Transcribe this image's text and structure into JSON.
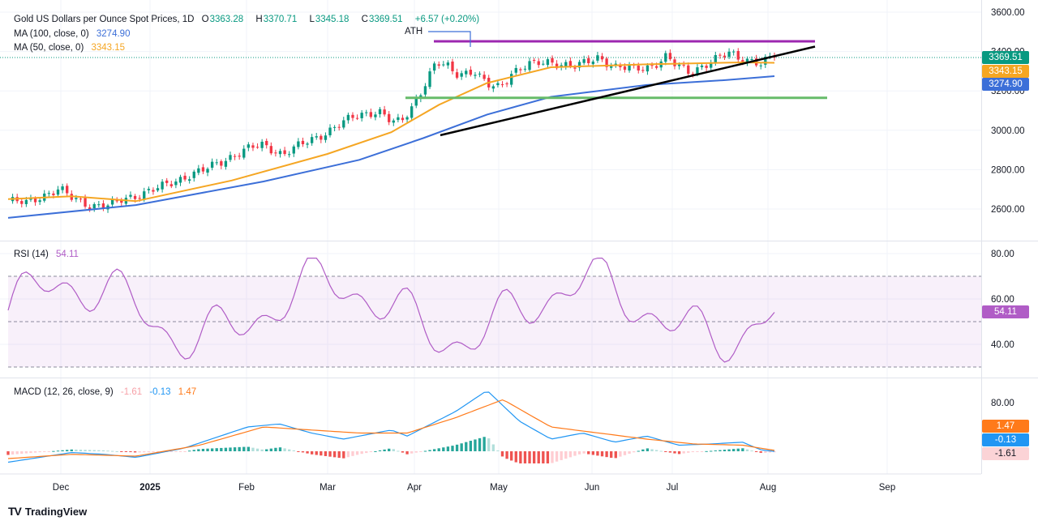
{
  "legend": {
    "title": "Gold US Dollars per Ounce Spot Prices, 1D",
    "ohlc": [
      {
        "k": "O",
        "v": "3363.28"
      },
      {
        "k": "H",
        "v": "3370.71"
      },
      {
        "k": "L",
        "v": "3345.18"
      },
      {
        "k": "C",
        "v": "3369.51"
      }
    ],
    "change": "+6.57 (+0.20%)",
    "ma100_label": "MA (100, close, 0)",
    "ma100_value": "3274.90",
    "ma50_label": "MA (50, close, 0)",
    "ma50_value": "3343.15",
    "rsi_label": "RSI (14)",
    "rsi_value": "54.11",
    "macd_label": "MACD (12, 26, close, 9)",
    "macd_hist": "-1.61",
    "macd_line": "-0.13",
    "macd_signal": "1.47"
  },
  "annotations": {
    "ath": "ATH"
  },
  "badges": {
    "price": "3369.51",
    "ma50": "3343.15",
    "ma100": "3274.90",
    "rsi": "54.11",
    "signal": "1.47",
    "macd": "-0.13",
    "hist": "-1.61"
  },
  "brand": "TradingView",
  "colors": {
    "up": "#089981",
    "down": "#f23645",
    "ma50": "#f5a623",
    "ma100": "#3c6fd8",
    "rsi": "#b05cc6",
    "macd": "#2196f3",
    "signal": "#ff7a1a",
    "resistance": "#9c27b0",
    "support": "#66bb6a",
    "trendline": "#000000"
  },
  "chart_data": [
    {
      "type": "candlestick",
      "title": "Gold US Dollars per Ounce Spot Prices, 1D",
      "x_ticks": [
        "Dec",
        "2025",
        "Feb",
        "Mar",
        "Apr",
        "May",
        "Jun",
        "Jul",
        "Aug",
        "Sep"
      ],
      "y_ticks": [
        2600,
        2800,
        3000,
        3200,
        3400,
        3600
      ],
      "ylim": [
        2520,
        3610
      ],
      "series": [
        {
          "name": "MA (100, close, 0)",
          "last": 3274.9
        },
        {
          "name": "MA (50, close, 0)",
          "last": 3343.15
        }
      ],
      "levels": {
        "resistance": 3452,
        "support": 3165
      },
      "trendline": {
        "from": [
          "Apr 8",
          2975
        ],
        "to": [
          "Aug 15",
          3425
        ]
      }
    },
    {
      "type": "line",
      "title": "RSI (14)",
      "y_ticks": [
        40,
        60,
        80
      ],
      "bands": [
        30,
        50,
        70
      ],
      "last": 54.11
    },
    {
      "type": "bar+line",
      "title": "MACD (12, 26, close, 9)",
      "y_ticks": [
        0,
        80
      ],
      "last": {
        "hist": -1.61,
        "macd": -0.13,
        "signal": 1.47
      }
    }
  ]
}
